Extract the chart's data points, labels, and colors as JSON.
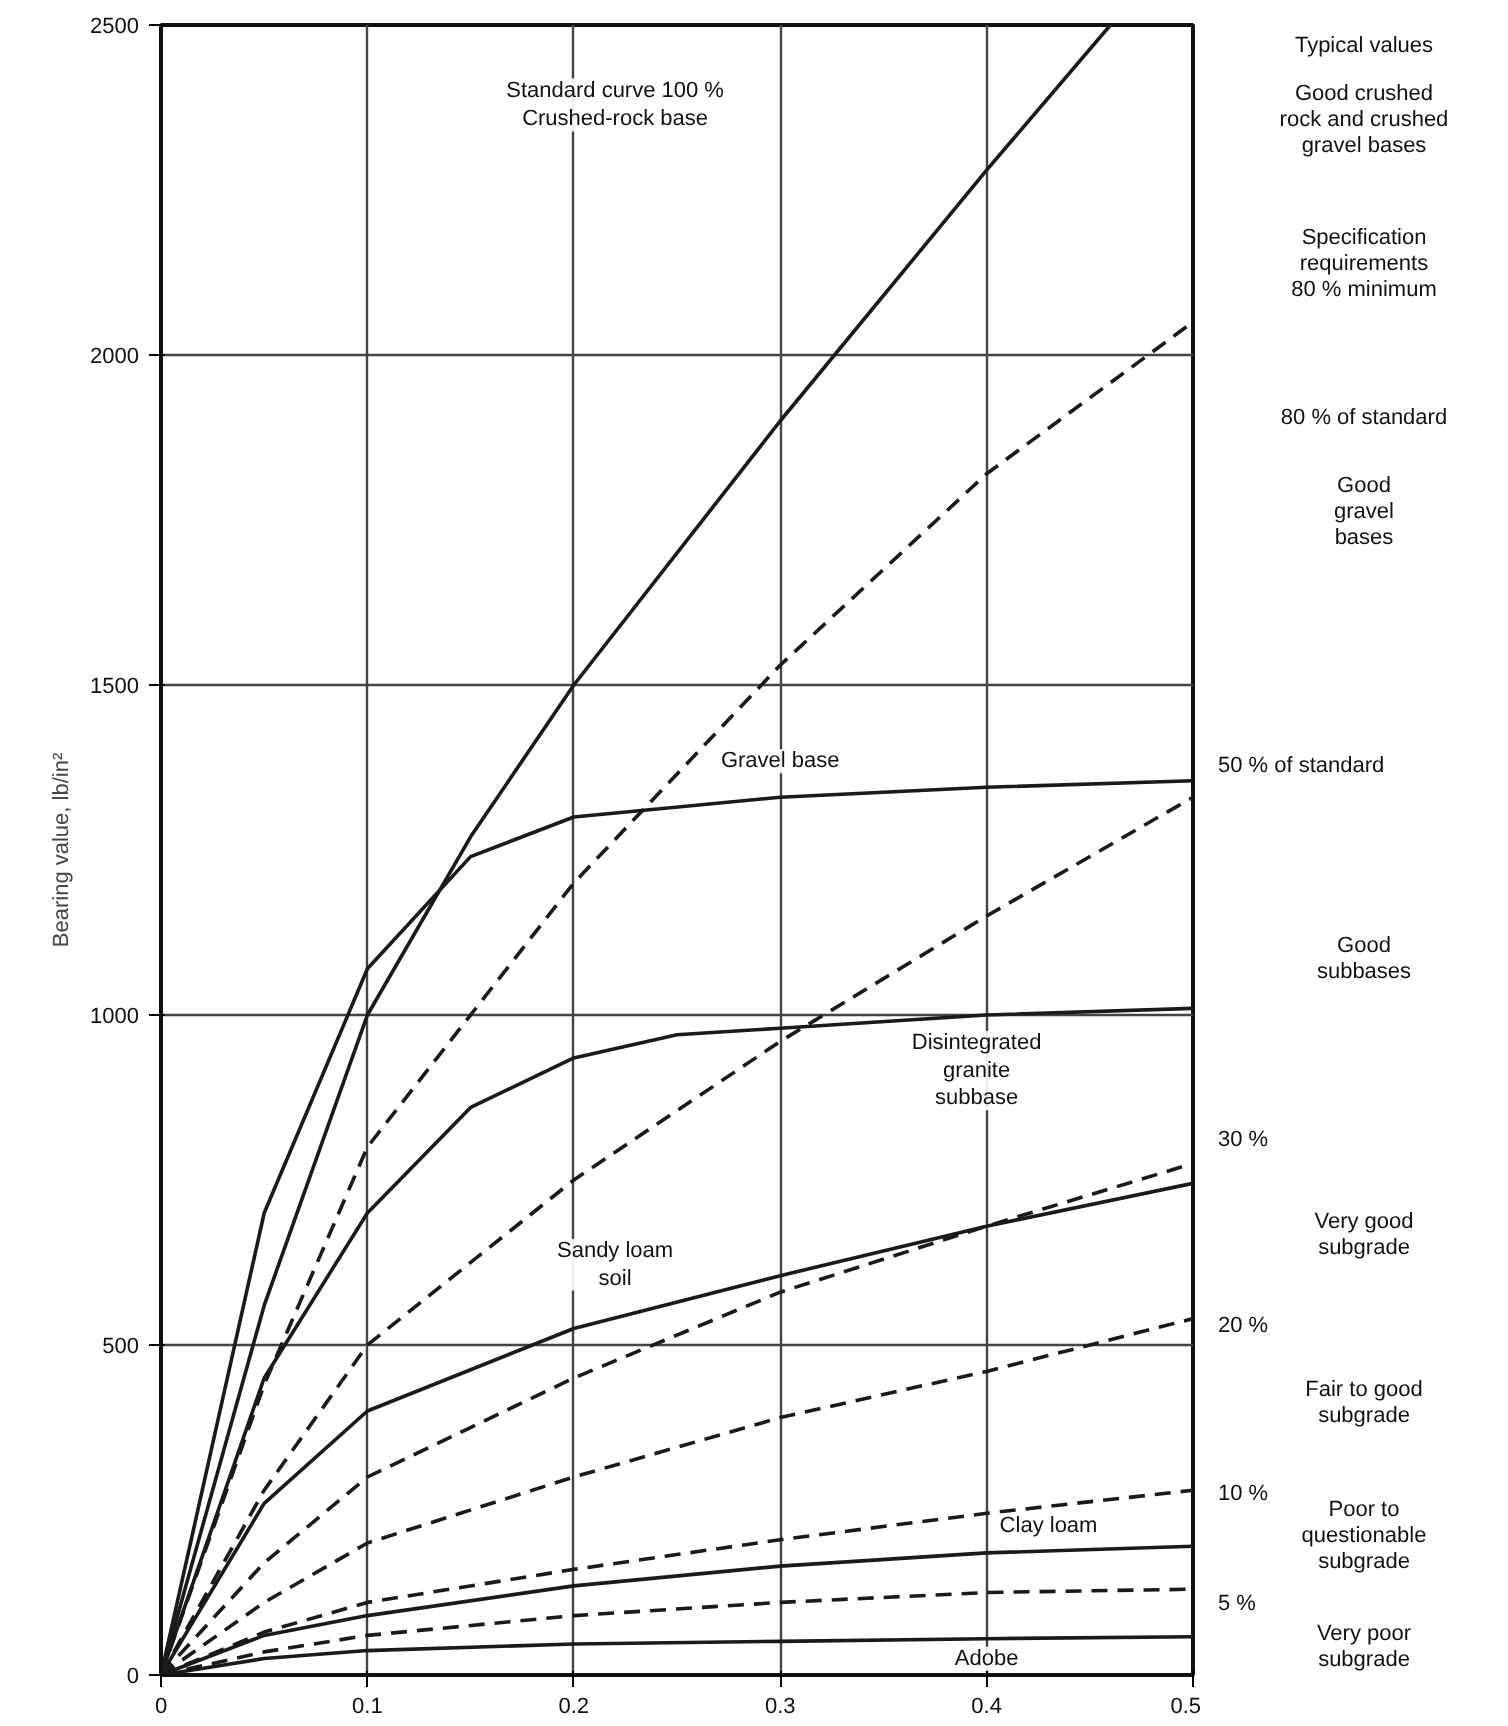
{
  "chart_data": {
    "type": "line",
    "ylabel": "Bearing value, lb/in²",
    "xlim": [
      0,
      0.5
    ],
    "ylim": [
      0,
      2500
    ],
    "xticks": [
      0,
      0.1,
      0.2,
      0.3,
      0.4,
      0.5
    ],
    "yticks": [
      0,
      500,
      1000,
      1500,
      2000,
      2500
    ],
    "grid": true,
    "color": "#1a1a1a",
    "series": [
      {
        "x": [
          0,
          0.05,
          0.1,
          0.15,
          0.2,
          0.3,
          0.4,
          0.46
        ],
        "values": [
          0,
          560,
          1000,
          1270,
          1500,
          1900,
          2280,
          2500
        ],
        "line_style": "solid"
      },
      {
        "x": [
          0,
          0.05,
          0.1,
          0.2,
          0.3,
          0.4,
          0.5
        ],
        "values": [
          0,
          440,
          800,
          1200,
          1530,
          1820,
          2050
        ],
        "line_style": "dashed"
      },
      {
        "x": [
          0,
          0.05,
          0.1,
          0.15,
          0.2,
          0.3,
          0.4,
          0.5
        ],
        "values": [
          0,
          700,
          1070,
          1240,
          1300,
          1330,
          1345,
          1355
        ],
        "line_style": "solid"
      },
      {
        "x": [
          0,
          0.05,
          0.1,
          0.2,
          0.3,
          0.4,
          0.5
        ],
        "values": [
          0,
          280,
          500,
          750,
          960,
          1150,
          1330
        ],
        "line_style": "dashed"
      },
      {
        "x": [
          0,
          0.05,
          0.1,
          0.15,
          0.2,
          0.25,
          0.3,
          0.4,
          0.5
        ],
        "values": [
          0,
          450,
          700,
          860,
          935,
          970,
          980,
          1000,
          1010
        ],
        "line_style": "solid"
      },
      {
        "x": [
          0,
          0.05,
          0.1,
          0.2,
          0.3,
          0.4,
          0.5
        ],
        "values": [
          0,
          260,
          400,
          525,
          605,
          680,
          745
        ],
        "line_style": "solid"
      },
      {
        "x": [
          0,
          0.05,
          0.1,
          0.2,
          0.3,
          0.4,
          0.5
        ],
        "values": [
          0,
          170,
          300,
          450,
          580,
          680,
          775
        ],
        "line_style": "dashed"
      },
      {
        "x": [
          0,
          0.05,
          0.1,
          0.2,
          0.3,
          0.4,
          0.5
        ],
        "values": [
          0,
          110,
          200,
          300,
          390,
          460,
          540
        ],
        "line_style": "dashed"
      },
      {
        "x": [
          0,
          0.05,
          0.1,
          0.2,
          0.3,
          0.4,
          0.5
        ],
        "values": [
          0,
          65,
          110,
          160,
          205,
          245,
          280
        ],
        "line_style": "dashed"
      },
      {
        "x": [
          0,
          0.05,
          0.1,
          0.2,
          0.3,
          0.4,
          0.5
        ],
        "values": [
          0,
          60,
          90,
          135,
          165,
          185,
          195
        ],
        "line_style": "solid"
      },
      {
        "x": [
          0,
          0.05,
          0.1,
          0.2,
          0.3,
          0.4,
          0.5
        ],
        "values": [
          0,
          35,
          60,
          90,
          110,
          125,
          130
        ],
        "line_style": "dashed"
      },
      {
        "x": [
          0,
          0.05,
          0.1,
          0.2,
          0.3,
          0.4,
          0.5
        ],
        "values": [
          0,
          25,
          37,
          47,
          51,
          55,
          58
        ],
        "line_style": "solid"
      }
    ],
    "annotations": [
      "Standard curve 100 %\nCrushed-rock base",
      {
        "text": "Gravel base",
        "x": 0.3,
        "y": 1330
      },
      {
        "text": "Disintegrated\ngranite\nsubbase",
        "x": 0.4,
        "y": 1000
      },
      {
        "text": "Sandy loam\nsoil",
        "x": 0.22,
        "y": 540
      },
      {
        "text": "Clay loam",
        "x": 0.43,
        "y": 190
      },
      {
        "text": "Adobe",
        "x": 0.4,
        "y": 55
      },
      {
        "text": "50 % of standard",
        "x": 0.5,
        "y": 1330
      },
      {
        "text": "30 %",
        "x": 0.5,
        "y": 775
      },
      {
        "text": "20 %",
        "x": 0.5,
        "y": 540
      },
      {
        "text": "10 %",
        "x": 0.5,
        "y": 280
      },
      {
        "text": "5 %",
        "x": 0.5,
        "y": 130
      },
      "Typical values",
      "Good crushed\nrock and crushed\ngravel bases",
      "Specification\nrequirements\n80 % minimum",
      "80 % of standard",
      "Good\ngravel\nbases",
      "Good\nsubbases",
      "Very good\nsubgrade",
      "Fair to good\nsubgrade",
      "Poor to\nquestionable\nsubgrade",
      "Very poor\nsubgrade"
    ]
  }
}
